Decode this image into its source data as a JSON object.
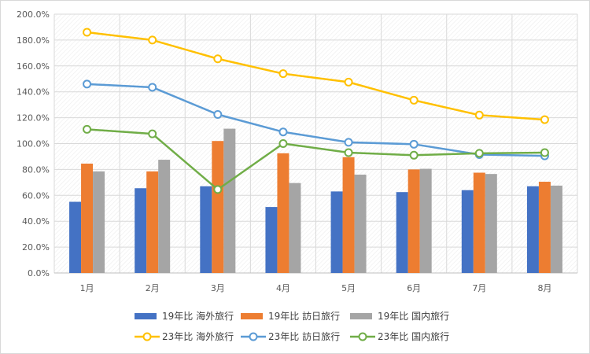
{
  "chart_data": {
    "type": "bar",
    "categories": [
      "1月",
      "2月",
      "3月",
      "4月",
      "5月",
      "6月",
      "7月",
      "8月"
    ],
    "ylim": [
      0,
      200
    ],
    "y_ticks": [
      "0.0%",
      "20.0%",
      "40.0%",
      "60.0%",
      "80.0%",
      "100.0%",
      "120.0%",
      "140.0%",
      "160.0%",
      "180.0%",
      "200.0%"
    ],
    "y_tick_values": [
      0,
      20,
      40,
      60,
      80,
      100,
      120,
      140,
      160,
      180,
      200
    ],
    "grid": true,
    "legend_position": "bottom",
    "series": [
      {
        "name": "19年比 海外旅行",
        "kind": "bar",
        "color": "#4472c4",
        "values": [
          55,
          65.5,
          67,
          51,
          63,
          62.5,
          64,
          67
        ]
      },
      {
        "name": "19年比 訪日旅行",
        "kind": "bar",
        "color": "#ed7d31",
        "values": [
          84.5,
          78.5,
          102,
          92.5,
          89.5,
          80,
          77.5,
          70.5
        ]
      },
      {
        "name": "19年比 国内旅行",
        "kind": "bar",
        "color": "#a5a5a5",
        "values": [
          78.5,
          87.5,
          111.5,
          69.5,
          76,
          80.5,
          76.5,
          67.5
        ]
      },
      {
        "name": "23年比 海外旅行",
        "kind": "line",
        "color": "#ffc000",
        "values": [
          186,
          180,
          165.5,
          154,
          147.5,
          133.5,
          122,
          118.5
        ]
      },
      {
        "name": "23年比 訪日旅行",
        "kind": "line",
        "color": "#5b9bd5",
        "values": [
          146,
          143.5,
          122.5,
          109,
          101,
          99.5,
          91.5,
          90.5
        ]
      },
      {
        "name": "23年比 国内旅行",
        "kind": "line",
        "color": "#70ad47",
        "values": [
          111,
          107.5,
          64.5,
          100,
          93,
          91,
          92.5,
          93
        ]
      }
    ]
  }
}
